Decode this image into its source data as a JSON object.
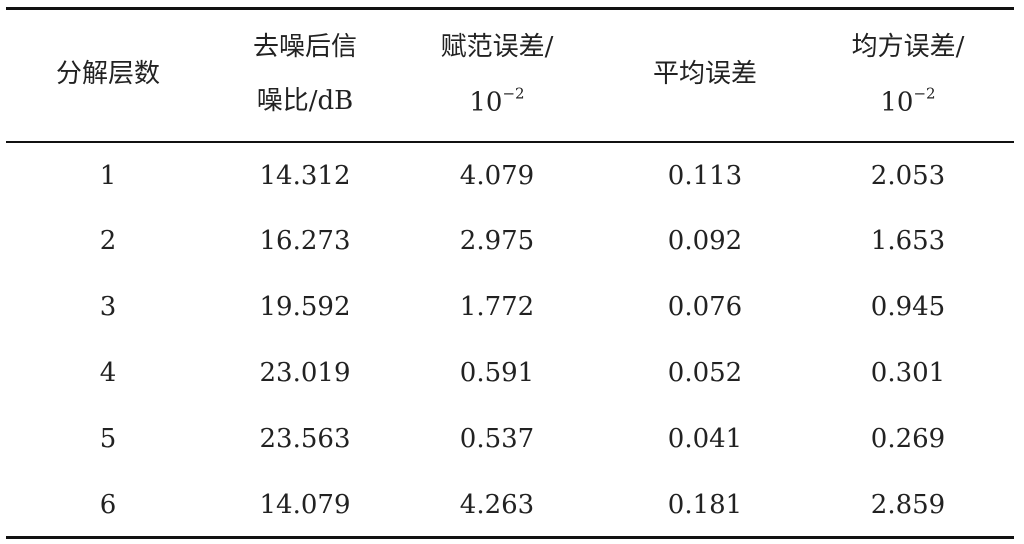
{
  "table": {
    "header": [
      {
        "lines": [
          "分解层数"
        ]
      },
      {
        "lines": [
          "去噪后信",
          "噪比/dB"
        ]
      },
      {
        "lines": [
          "赋范误差/"
        ],
        "unit": {
          "base": "10",
          "exp": "−2"
        }
      },
      {
        "lines": [
          "平均误差"
        ]
      },
      {
        "lines": [
          "均方误差/"
        ],
        "unit": {
          "base": "10",
          "exp": "−2"
        }
      }
    ],
    "rows": [
      [
        1,
        14.312,
        4.079,
        0.113,
        2.053
      ],
      [
        2,
        16.273,
        2.975,
        0.092,
        1.653
      ],
      [
        3,
        19.592,
        1.772,
        0.076,
        0.945
      ],
      [
        4,
        23.019,
        0.591,
        0.052,
        0.301
      ],
      [
        5,
        23.563,
        0.537,
        0.041,
        0.269
      ],
      [
        6,
        14.079,
        4.263,
        0.181,
        2.859
      ]
    ]
  }
}
